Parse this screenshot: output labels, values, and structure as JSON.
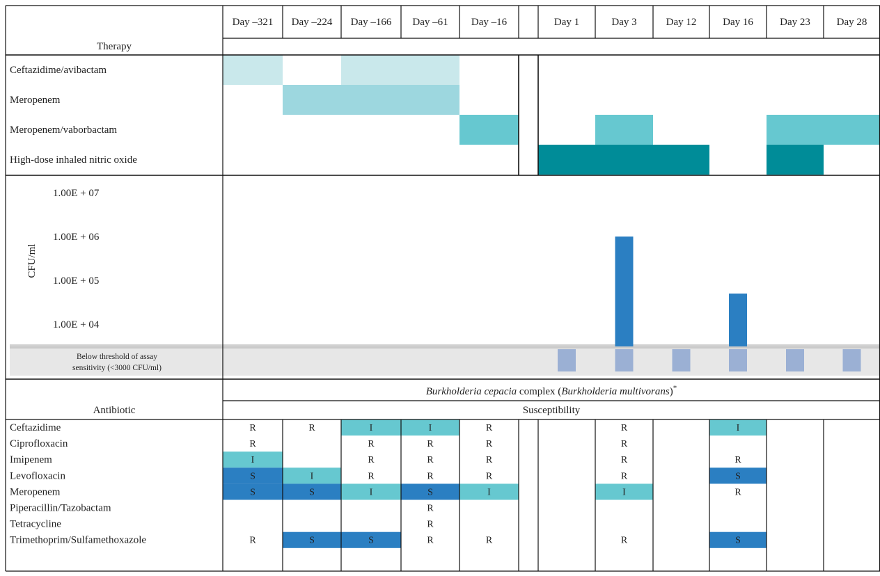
{
  "days": [
    "Day –321",
    "Day –224",
    "Day –166",
    "Day –61",
    "Day –16",
    "",
    "Day 1",
    "Day 3",
    "Day 12",
    "Day 16",
    "Day 23",
    "Day 28"
  ],
  "therapy": {
    "header": "Therapy",
    "rows": [
      {
        "label": "Ceftazidime/avibactam",
        "color": "#c9e8eb",
        "on": [
          1,
          0,
          1,
          1,
          0,
          0,
          0,
          0,
          0,
          0,
          0,
          0
        ]
      },
      {
        "label": "Meropenem",
        "color": "#9dd7df",
        "on": [
          0,
          1,
          1,
          1,
          0,
          0,
          0,
          0,
          0,
          0,
          0,
          0
        ]
      },
      {
        "label": "Meropenem/vaborbactam",
        "color": "#66c8d0",
        "on": [
          0,
          0,
          0,
          0,
          1,
          0,
          0,
          1,
          0,
          0,
          1,
          1
        ]
      },
      {
        "label": "High-dose inhaled nitric oxide",
        "color": "#008c98",
        "on": [
          0,
          0,
          0,
          0,
          0,
          0,
          1,
          1,
          1,
          0,
          1,
          0
        ]
      }
    ]
  },
  "chart_data": {
    "type": "bar",
    "ylabel": "CFU/ml",
    "y_scale": "log",
    "y_ticks": [
      "1.00E + 07",
      "1.00E + 06",
      "1.00E + 05",
      "1.00E + 04"
    ],
    "y_tick_values": [
      10000000,
      1000000,
      100000,
      10000
    ],
    "threshold_label": "Below threshold of assay sensitivity (<3000 CFU/ml)",
    "threshold_label_lines": [
      "Below threshold of assay",
      "sensitivity (<3000 CFU/ml)"
    ],
    "categories": [
      "Day –321",
      "Day –224",
      "Day –166",
      "Day –61",
      "Day –16",
      "",
      "Day 1",
      "Day 3",
      "Day 12",
      "Day 16",
      "Day 23",
      "Day 28"
    ],
    "values": [
      null,
      null,
      null,
      null,
      null,
      null,
      "below",
      1000000,
      "below",
      50000,
      "below",
      "below"
    ],
    "bar_color": "#2b7fc2",
    "below_color": "#9bb0d4"
  },
  "susceptibility": {
    "organism_italic_1": "Burkholderia cepacia",
    "organism_plain_1": " complex (",
    "organism_italic_2": "Burkholderia multivorans",
    "organism_plain_2": ")",
    "organism_mark": "*",
    "header_left": "Antibiotic",
    "header_right": "Susceptibility",
    "colors": {
      "S": "#2b7fc2",
      "I": "#66c8d0",
      "R": ""
    },
    "rows": [
      {
        "label": "Ceftazidime",
        "cells": [
          "R",
          "R",
          "I",
          "I",
          "R",
          "",
          "",
          "R",
          "",
          "I",
          "",
          ""
        ]
      },
      {
        "label": "Ciprofloxacin",
        "cells": [
          "R",
          "",
          "R",
          "R",
          "R",
          "",
          "",
          "R",
          "",
          "",
          "",
          ""
        ]
      },
      {
        "label": "Imipenem",
        "cells": [
          "I",
          "",
          "R",
          "R",
          "R",
          "",
          "",
          "R",
          "",
          "R",
          "",
          ""
        ]
      },
      {
        "label": "Levofloxacin",
        "cells": [
          "S",
          "I",
          "R",
          "R",
          "R",
          "",
          "",
          "R",
          "",
          "S",
          "",
          ""
        ]
      },
      {
        "label": "Meropenem",
        "cells": [
          "S",
          "S",
          "I",
          "S",
          "I",
          "",
          "",
          "I",
          "",
          "R",
          "",
          ""
        ]
      },
      {
        "label": "Piperacillin/Tazobactam",
        "cells": [
          "",
          "",
          "",
          "R",
          "",
          "",
          "",
          "",
          "",
          "",
          "",
          ""
        ]
      },
      {
        "label": "Tetracycline",
        "cells": [
          "",
          "",
          "",
          "R",
          "",
          "",
          "",
          "",
          "",
          "",
          "",
          ""
        ]
      },
      {
        "label": "Trimethoprim/Sulfamethoxazole",
        "cells": [
          "R",
          "S",
          "S",
          "R",
          "R",
          "",
          "",
          "R",
          "",
          "S",
          "",
          ""
        ]
      }
    ]
  }
}
